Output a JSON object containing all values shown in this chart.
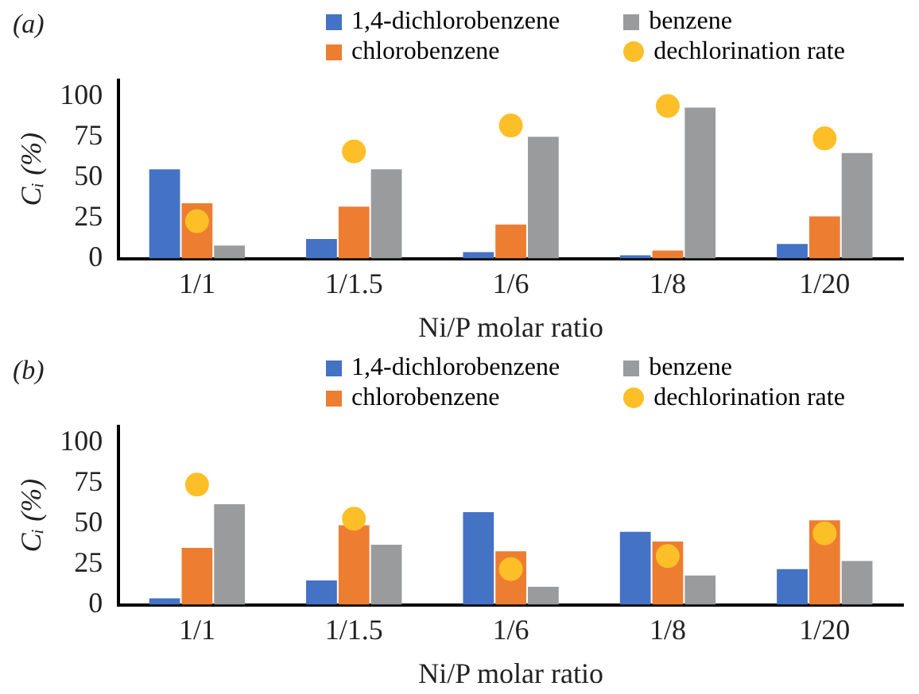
{
  "chart_data": [
    {
      "type": "bar",
      "title": "(a)",
      "xlabel": "Ni/P molar ratio",
      "ylabel": "Cᵢ (%)",
      "categories": [
        "1/1",
        "1/1.5",
        "1/6",
        "1/8",
        "1/20"
      ],
      "ylim": [
        0,
        110
      ],
      "yticks": [
        0,
        25,
        50,
        75,
        100
      ],
      "grid": false,
      "legend": "top",
      "series": [
        {
          "name": "1,4-dichlorobenzene",
          "color": "#4472c4",
          "values": [
            55,
            12,
            4,
            2,
            9
          ]
        },
        {
          "name": "chlorobenzene",
          "color": "#ed7d31",
          "values": [
            34,
            32,
            21,
            5,
            26
          ]
        },
        {
          "name": "benzene",
          "color": "#999b9c",
          "values": [
            8,
            55,
            75,
            93,
            65
          ]
        },
        {
          "name": "dechlorination rate",
          "type": "scatter",
          "color": "#fcbf27",
          "marker": "circle",
          "x": [
            "1/1",
            "1/1.5",
            "1/6",
            "1/8",
            "1/20"
          ],
          "values": [
            23,
            66,
            82,
            94,
            74
          ]
        }
      ]
    },
    {
      "type": "bar",
      "title": "(b)",
      "xlabel": "Ni/P molar ratio",
      "ylabel": "Cᵢ (%)",
      "categories": [
        "1/1",
        "1/1.5",
        "1/6",
        "1/8",
        "1/20"
      ],
      "ylim": [
        0,
        110
      ],
      "yticks": [
        0,
        25,
        50,
        75,
        100
      ],
      "grid": false,
      "legend": "top",
      "series": [
        {
          "name": "1,4-dichlorobenzene",
          "color": "#4472c4",
          "values": [
            4,
            15,
            57,
            45,
            22
          ]
        },
        {
          "name": "chlorobenzene",
          "color": "#ed7d31",
          "values": [
            35,
            49,
            33,
            39,
            52
          ]
        },
        {
          "name": "benzene",
          "color": "#999b9c",
          "values": [
            62,
            37,
            11,
            18,
            27
          ]
        },
        {
          "name": "dechlorination rate",
          "type": "scatter",
          "color": "#fcbf27",
          "marker": "circle",
          "x": [
            "1/1",
            "1/1.5",
            "1/6",
            "1/8",
            "1/20"
          ],
          "values": [
            74,
            53,
            22,
            30,
            44
          ]
        }
      ]
    }
  ]
}
